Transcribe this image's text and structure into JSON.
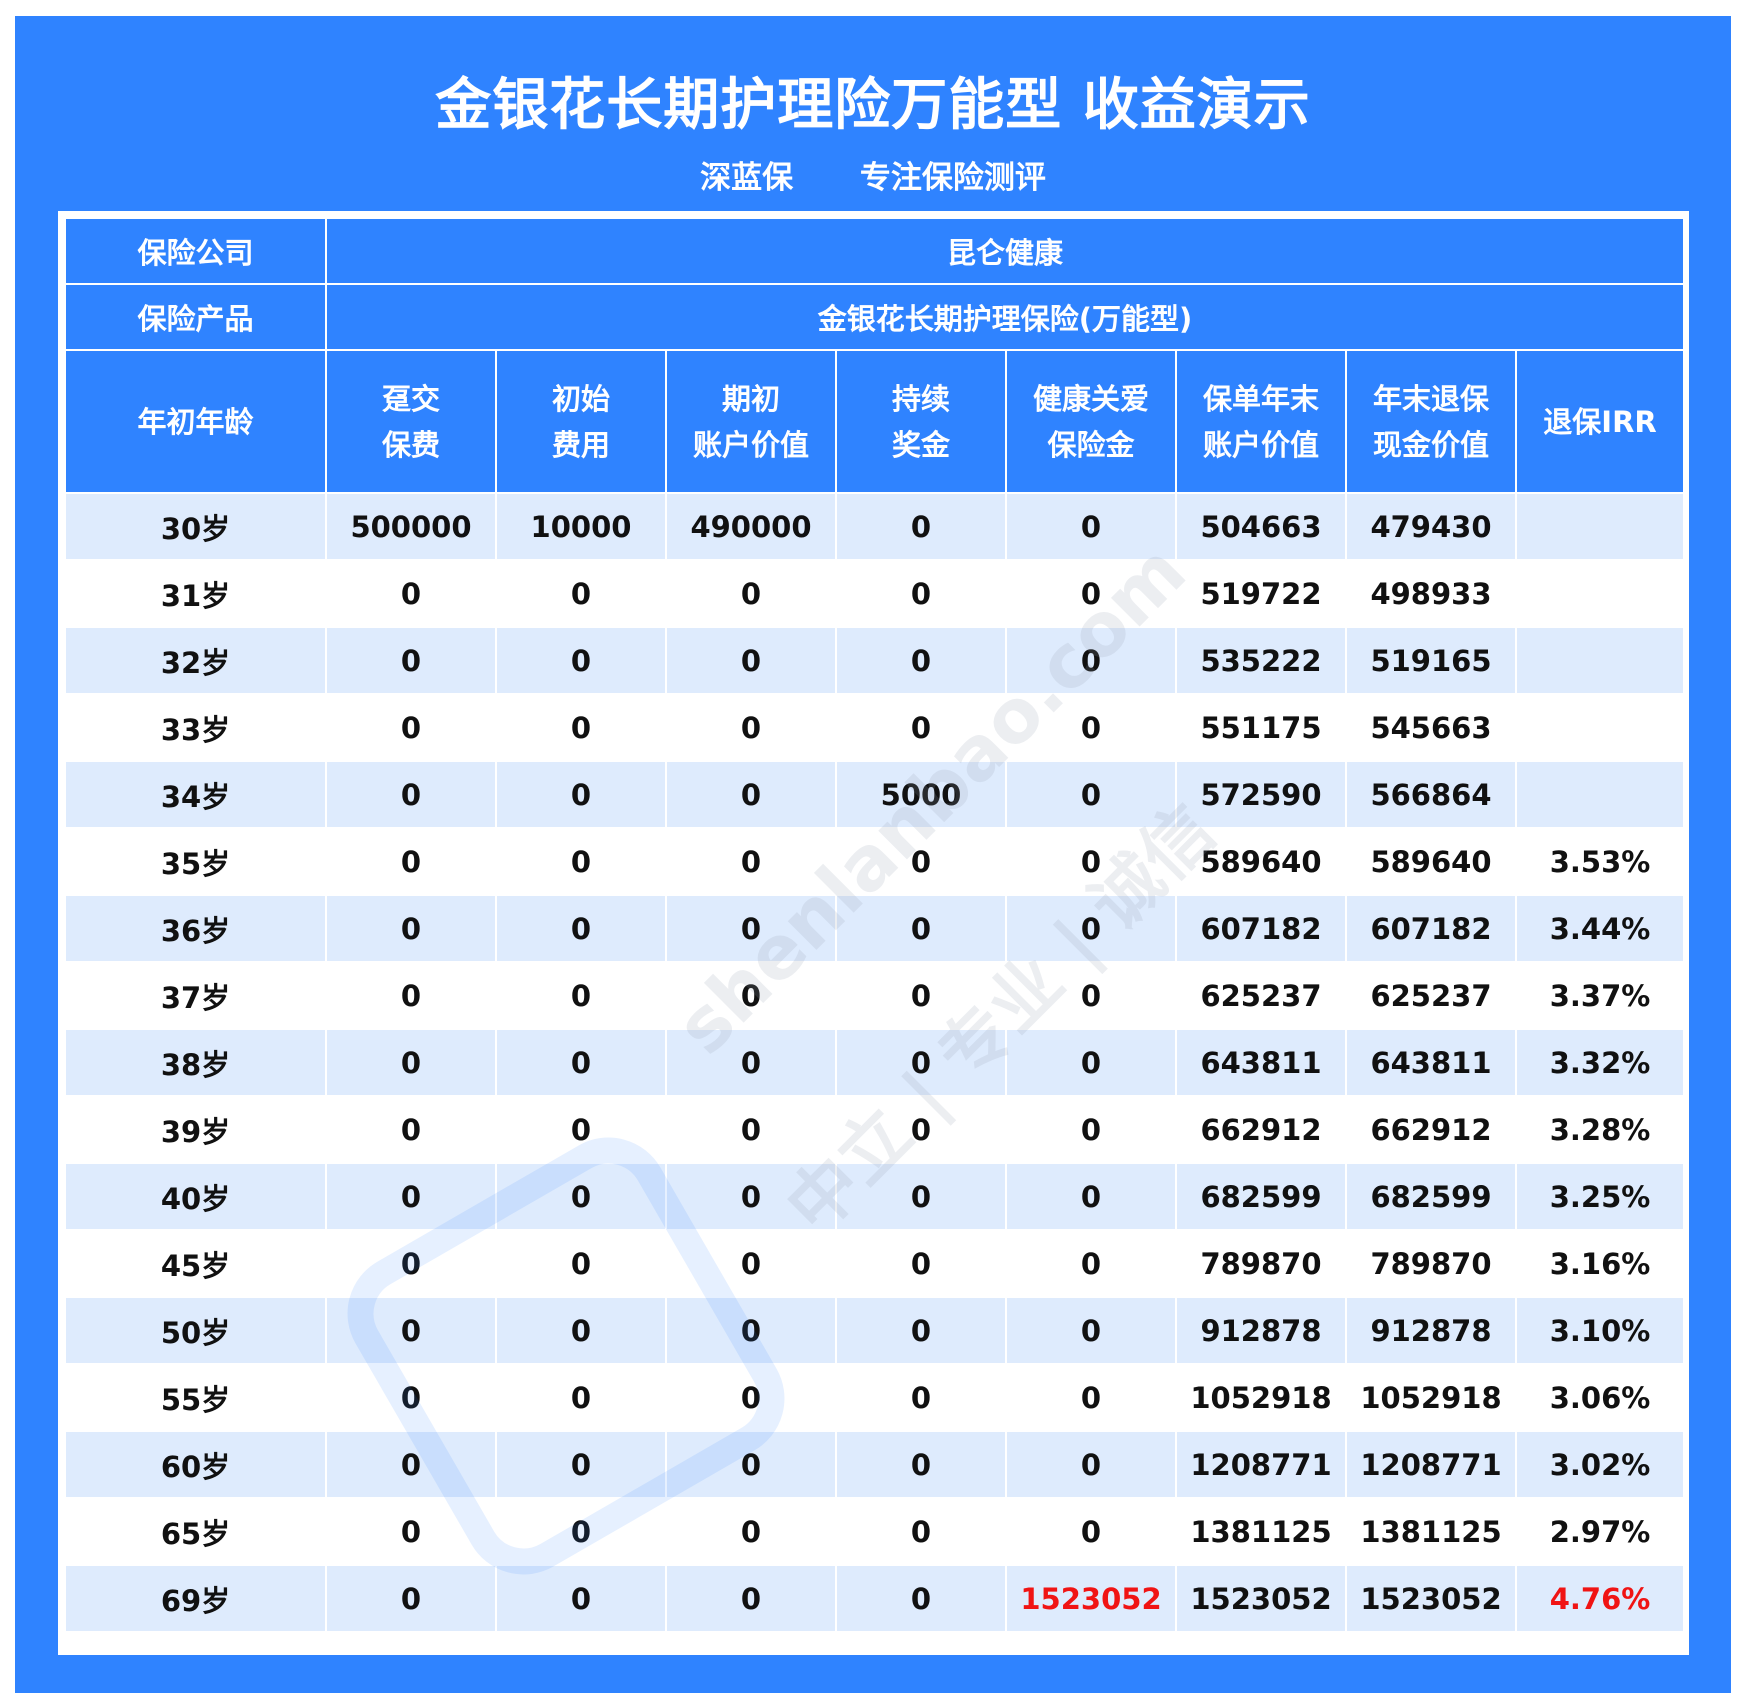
{
  "header": {
    "title": "金银花长期护理险万能型 收益演示",
    "subtitle_left": "深蓝保",
    "subtitle_right": "专注保险测评"
  },
  "info": {
    "company_label": "保险公司",
    "company_value": "昆仑健康",
    "product_label": "保险产品",
    "product_value": "金银花长期护理保险(万能型)"
  },
  "columns": [
    {
      "l1": "年初年龄",
      "l2": ""
    },
    {
      "l1": "趸交",
      "l2": "保费"
    },
    {
      "l1": "初始",
      "l2": "费用"
    },
    {
      "l1": "期初",
      "l2": "账户价值"
    },
    {
      "l1": "持续",
      "l2": "奖金"
    },
    {
      "l1": "健康关爱",
      "l2": "保险金"
    },
    {
      "l1": "保单年末",
      "l2": "账户价值"
    },
    {
      "l1": "年末退保",
      "l2": "现金价值"
    },
    {
      "l1": "退保IRR",
      "l2": ""
    }
  ],
  "rows": [
    [
      "30岁",
      "500000",
      "10000",
      "490000",
      "0",
      "0",
      "504663",
      "479430",
      ""
    ],
    [
      "31岁",
      "0",
      "0",
      "0",
      "0",
      "0",
      "519722",
      "498933",
      ""
    ],
    [
      "32岁",
      "0",
      "0",
      "0",
      "0",
      "0",
      "535222",
      "519165",
      ""
    ],
    [
      "33岁",
      "0",
      "0",
      "0",
      "0",
      "0",
      "551175",
      "545663",
      ""
    ],
    [
      "34岁",
      "0",
      "0",
      "0",
      "5000",
      "0",
      "572590",
      "566864",
      ""
    ],
    [
      "35岁",
      "0",
      "0",
      "0",
      "0",
      "0",
      "589640",
      "589640",
      "3.53%"
    ],
    [
      "36岁",
      "0",
      "0",
      "0",
      "0",
      "0",
      "607182",
      "607182",
      "3.44%"
    ],
    [
      "37岁",
      "0",
      "0",
      "0",
      "0",
      "0",
      "625237",
      "625237",
      "3.37%"
    ],
    [
      "38岁",
      "0",
      "0",
      "0",
      "0",
      "0",
      "643811",
      "643811",
      "3.32%"
    ],
    [
      "39岁",
      "0",
      "0",
      "0",
      "0",
      "0",
      "662912",
      "662912",
      "3.28%"
    ],
    [
      "40岁",
      "0",
      "0",
      "0",
      "0",
      "0",
      "682599",
      "682599",
      "3.25%"
    ],
    [
      "45岁",
      "0",
      "0",
      "0",
      "0",
      "0",
      "789870",
      "789870",
      "3.16%"
    ],
    [
      "50岁",
      "0",
      "0",
      "0",
      "0",
      "0",
      "912878",
      "912878",
      "3.10%"
    ],
    [
      "55岁",
      "0",
      "0",
      "0",
      "0",
      "0",
      "1052918",
      "1052918",
      "3.06%"
    ],
    [
      "60岁",
      "0",
      "0",
      "0",
      "0",
      "0",
      "1208771",
      "1208771",
      "3.02%"
    ],
    [
      "65岁",
      "0",
      "0",
      "0",
      "0",
      "0",
      "1381125",
      "1381125",
      "2.97%"
    ],
    [
      "69岁",
      "0",
      "0",
      "0",
      "0",
      "1523052",
      "1523052",
      "1523052",
      "4.76%"
    ]
  ],
  "highlight": {
    "color": "#f01414",
    "cells": [
      [
        16,
        5
      ],
      [
        16,
        8
      ]
    ]
  },
  "colors": {
    "brand_blue": "#2f83ff",
    "row_alt": "#deebfd"
  },
  "watermark": {
    "text1": "shenlanbao.com",
    "text2": "中立 | 专业 | 诚信",
    "logo": "深蓝保"
  }
}
